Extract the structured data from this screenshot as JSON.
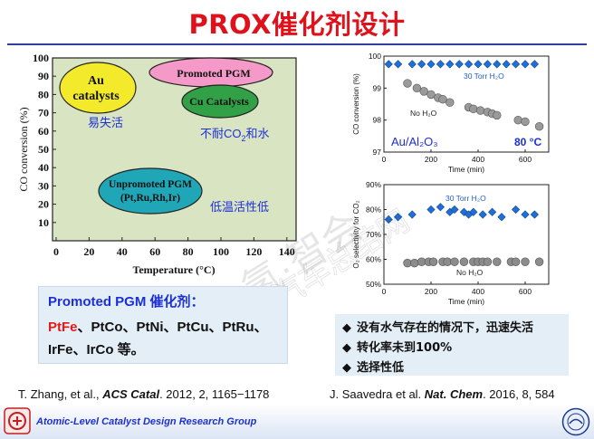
{
  "slide": {
    "title": "PROX催化剂设计"
  },
  "left_chart": {
    "y_label": "CO conversion (%)",
    "x_label_main": "Temperature (",
    "x_label_unit": "°C",
    "x_label_close": ")",
    "regions": [
      {
        "label_lines": [
          "Au",
          "catalysts"
        ],
        "color": "#f2ea2a"
      },
      {
        "label_lines": [
          "Promoted PGM"
        ],
        "color": "#f59ac8"
      },
      {
        "label_lines": [
          "Cu Catalysts"
        ],
        "color": "#31a046"
      },
      {
        "label_lines": [
          "Unpromoted PGM",
          "(Pt,Ru,Rh,Ir)"
        ],
        "color": "#1fa7b8"
      }
    ],
    "annotations": {
      "au": "易失活",
      "cu_prefix": "不耐CO",
      "cu_sub": "2",
      "cu_suffix": "和水",
      "pgm": "低温活性低"
    },
    "x_ticks": [
      "0",
      "20",
      "40",
      "60",
      "80",
      "100",
      "120",
      "140"
    ],
    "y_ticks": [
      "10",
      "20",
      "30",
      "40",
      "50",
      "60",
      "70",
      "80",
      "90",
      "100"
    ]
  },
  "chart_data": [
    {
      "type": "scatter",
      "x_label": "Time (min)",
      "y_label": "CO conversion (%)",
      "xlim": [
        0,
        700
      ],
      "ylim": [
        97,
        100
      ],
      "x_ticks": [
        0,
        200,
        400,
        600
      ],
      "y_ticks": [
        97,
        98,
        99,
        100
      ],
      "annotations": [
        "Au/Al₂O₃",
        "80 °C"
      ],
      "series": [
        {
          "name": "30 Torr H₂O",
          "marker": "diamond",
          "color": "#1f6fd6",
          "x": [
            20,
            60,
            120,
            160,
            200,
            240,
            280,
            320,
            360,
            400,
            440,
            480,
            520,
            560,
            600,
            640
          ],
          "y": [
            99.75,
            99.75,
            99.75,
            99.75,
            99.75,
            99.75,
            99.75,
            99.75,
            99.75,
            99.75,
            99.75,
            99.75,
            99.75,
            99.75,
            99.75,
            99.75
          ]
        },
        {
          "name": "No H₂O",
          "marker": "circle",
          "color": "#9a9a9a",
          "x": [
            100,
            140,
            170,
            200,
            230,
            250,
            280,
            360,
            380,
            410,
            440,
            460,
            480,
            570,
            600,
            660
          ],
          "y": [
            99.15,
            99.0,
            98.9,
            98.8,
            98.7,
            98.65,
            98.55,
            98.4,
            98.35,
            98.3,
            98.25,
            98.2,
            98.15,
            98.0,
            97.95,
            97.8
          ]
        }
      ]
    },
    {
      "type": "scatter",
      "x_label": "Time (min)",
      "y_label": "O₂ selectivity for CO₂",
      "xlim": [
        0,
        700
      ],
      "ylim": [
        50,
        90
      ],
      "x_ticks": [
        0,
        200,
        400,
        600
      ],
      "y_ticks": [
        "50%",
        "60%",
        "70%",
        "80%",
        "90%"
      ],
      "series": [
        {
          "name": "30 Torr H₂O",
          "marker": "diamond",
          "color": "#1f6fd6",
          "x": [
            20,
            60,
            120,
            200,
            240,
            280,
            300,
            340,
            360,
            380,
            420,
            460,
            500,
            560,
            600,
            640
          ],
          "y": [
            76,
            77,
            78,
            80,
            81,
            79,
            80,
            79,
            78,
            79,
            78,
            79,
            77,
            80,
            78,
            78
          ]
        },
        {
          "name": "No H₂O",
          "marker": "circle",
          "color": "#8c8c8c",
          "x": [
            100,
            130,
            160,
            190,
            210,
            250,
            270,
            300,
            340,
            380,
            400,
            420,
            440,
            480,
            540,
            560,
            600,
            660
          ],
          "y": [
            58.5,
            58.5,
            59,
            59,
            59,
            59,
            59,
            59,
            59,
            59,
            59,
            59,
            59,
            59,
            59,
            59,
            59,
            59
          ]
        }
      ]
    }
  ],
  "promoted_box": {
    "heading": "Promoted PGM 催化剂：",
    "line1_red": "PtFe",
    "line1_rest": "、PtCo、PtNi、PtCu、PtRu、",
    "line2": "IrFe、IrCo 等。"
  },
  "bullets": {
    "symbol": "◆",
    "items": [
      "没有水气存在的情况下，迅速失活",
      "转化率未到100%",
      "选择性低"
    ]
  },
  "citations": {
    "left_pre": "T. Zhang, et al., ",
    "left_journal": "ACS Catal",
    "left_post": ". 2012, 2, 1165−1178",
    "right_pre": "J. Saavedra et al. ",
    "right_journal": "Nat. Chem",
    "right_post": ". 2016, 8, 584"
  },
  "footer": {
    "group_name": "Atomic-Level Catalyst Design Research Group"
  },
  "watermark": {
    "line1": "氢·智会",
    "line2": "汽车总结网"
  }
}
